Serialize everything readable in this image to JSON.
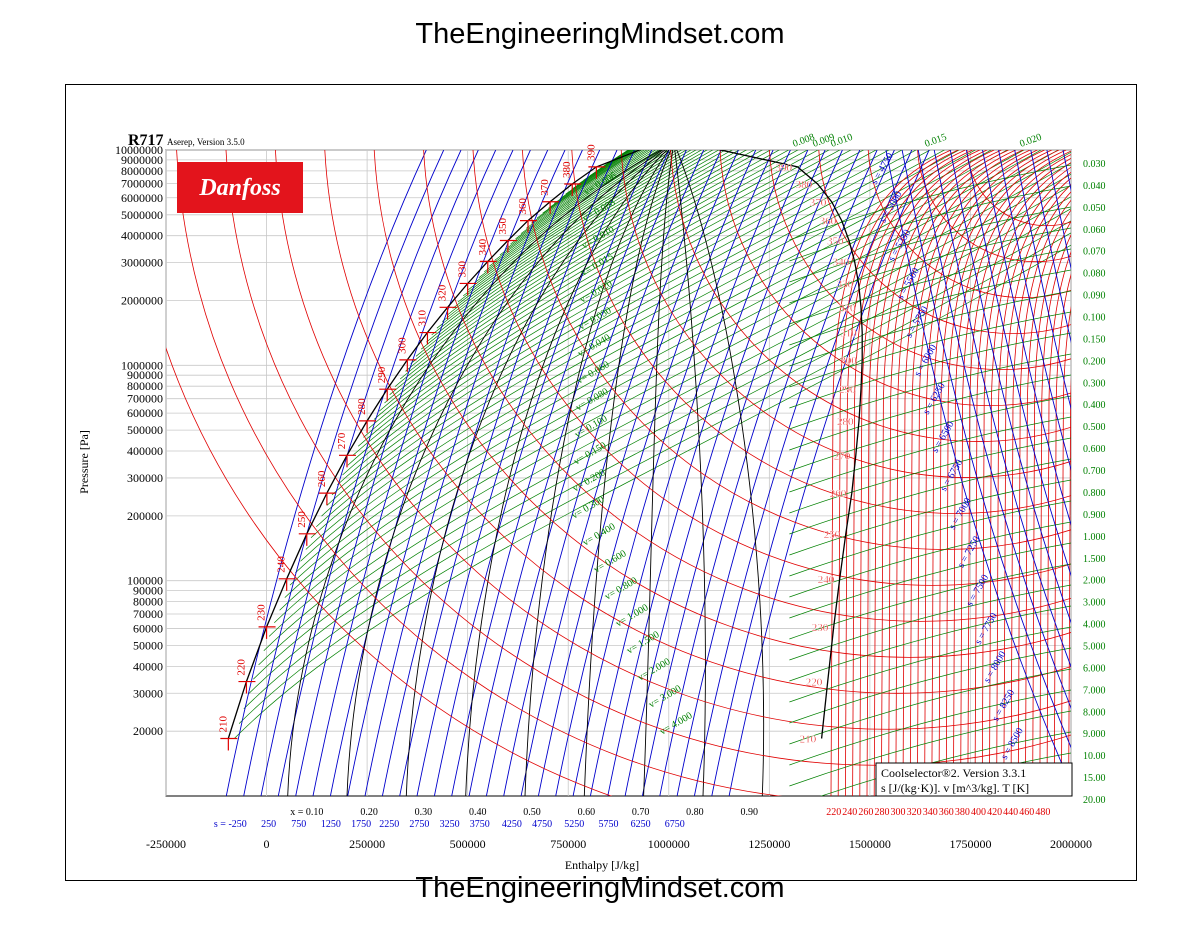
{
  "site": {
    "watermark": "TheEngineeringMindset.com"
  },
  "header": {
    "refrigerant": "R717",
    "version": "Aserep, Version 3.5.0",
    "brand": "Danfoss"
  },
  "footer": {
    "software": "Coolselector®2. Version 3.3.1",
    "units": "s [J/(kg·K)]. v [m^3/kg]. T [K]"
  },
  "colors": {
    "temperature": "#e00000",
    "specific_volume": "#008000",
    "entropy": "#0000cc",
    "quality": "#000000",
    "brand_red": "#e3141c"
  },
  "chart_data": {
    "type": "line",
    "title": "R717",
    "xlabel": "Enthalpy [J/kg]",
    "ylabel": "Pressure [Pa]",
    "xlim": [
      -250000,
      2000000
    ],
    "ylim": [
      10000,
      10000000
    ],
    "yscale": "log",
    "grid": true,
    "x_ticks": [
      {
        "v": -250000,
        "label": "-250000"
      },
      {
        "v": 0,
        "label": "0"
      },
      {
        "v": 250000,
        "label": "250000"
      },
      {
        "v": 500000,
        "label": "500000"
      },
      {
        "v": 750000,
        "label": "750000"
      },
      {
        "v": 1000000,
        "label": "1000000"
      },
      {
        "v": 1250000,
        "label": "1250000"
      },
      {
        "v": 1500000,
        "label": "1500000"
      },
      {
        "v": 1750000,
        "label": "1750000"
      },
      {
        "v": 2000000,
        "label": "2000000"
      }
    ],
    "y_ticks": [
      {
        "v": 20000,
        "label": "20000"
      },
      {
        "v": 30000,
        "label": "30000"
      },
      {
        "v": 40000,
        "label": "40000"
      },
      {
        "v": 50000,
        "label": "50000"
      },
      {
        "v": 60000,
        "label": "60000"
      },
      {
        "v": 70000,
        "label": "70000"
      },
      {
        "v": 80000,
        "label": "80000"
      },
      {
        "v": 90000,
        "label": "90000"
      },
      {
        "v": 100000,
        "label": "100000"
      },
      {
        "v": 200000,
        "label": "200000"
      },
      {
        "v": 300000,
        "label": "300000"
      },
      {
        "v": 400000,
        "label": "400000"
      },
      {
        "v": 500000,
        "label": "500000"
      },
      {
        "v": 600000,
        "label": "600000"
      },
      {
        "v": 700000,
        "label": "700000"
      },
      {
        "v": 800000,
        "label": "800000"
      },
      {
        "v": 900000,
        "label": "900000"
      },
      {
        "v": 1000000,
        "label": "1000000"
      },
      {
        "v": 2000000,
        "label": "2000000"
      },
      {
        "v": 3000000,
        "label": "3000000"
      },
      {
        "v": 4000000,
        "label": "4000000"
      },
      {
        "v": 5000000,
        "label": "5000000"
      },
      {
        "v": 6000000,
        "label": "6000000"
      },
      {
        "v": 7000000,
        "label": "7000000"
      },
      {
        "v": 8000000,
        "label": "8000000"
      },
      {
        "v": 9000000,
        "label": "9000000"
      },
      {
        "v": 10000000,
        "label": "10000000"
      }
    ],
    "entropy_axis": {
      "prefix": "s = ",
      "labels": [
        "-250",
        "250",
        "750",
        "1250",
        "1750",
        "2250",
        "2750",
        "3250",
        "3750",
        "4250",
        "4750",
        "5250",
        "5750",
        "6250",
        "6750"
      ],
      "h": [
        -90000,
        5000,
        80000,
        160000,
        235000,
        305000,
        380000,
        455000,
        530000,
        610000,
        685000,
        765000,
        850000,
        930000,
        1015000
      ]
    },
    "quality_axis": {
      "prefix": "x = ",
      "labels": [
        "0.10",
        "0.20",
        "0.30",
        "0.40",
        "0.50",
        "0.60",
        "0.70",
        "0.80",
        "0.90"
      ],
      "h": [
        100000,
        255000,
        390000,
        525000,
        660000,
        795000,
        930000,
        1065000,
        1200000
      ]
    },
    "temperature_axis": {
      "labels": [
        "220",
        "240",
        "260",
        "280",
        "300",
        "320",
        "340",
        "360",
        "380",
        "400",
        "420",
        "440",
        "460",
        "480"
      ]
    },
    "saturated_liquid": {
      "T": [
        210,
        220,
        230,
        240,
        250,
        260,
        270,
        280,
        290,
        300,
        310,
        320,
        330,
        340,
        350,
        360,
        370,
        380,
        390
      ],
      "h": [
        -95000,
        -50000,
        0,
        50000,
        100000,
        150000,
        200000,
        250000,
        300000,
        350000,
        400000,
        450000,
        500000,
        550000,
        600000,
        650000,
        705000,
        760000,
        820000
      ],
      "p": [
        18500,
        34000,
        61000,
        102000,
        165000,
        255000,
        382000,
        552000,
        775000,
        1060000,
        1420000,
        1860000,
        2400000,
        3040000,
        3800000,
        4700000,
        5750000,
        6950000,
        8350000
      ]
    },
    "saturated_vapor": {
      "T": [
        210,
        220,
        230,
        240,
        250,
        260,
        270,
        280,
        290,
        300,
        310,
        320,
        330,
        340,
        350,
        360,
        370,
        380,
        390
      ],
      "h": [
        1380000,
        1395000,
        1410000,
        1425000,
        1440000,
        1455000,
        1465000,
        1473000,
        1478000,
        1481000,
        1481000,
        1478000,
        1472000,
        1462000,
        1448000,
        1430000,
        1405000,
        1370000,
        1320000
      ],
      "p": [
        18500,
        34000,
        61000,
        102000,
        165000,
        255000,
        382000,
        552000,
        775000,
        1060000,
        1420000,
        1860000,
        2400000,
        3040000,
        3800000,
        4700000,
        5750000,
        6950000,
        8350000
      ]
    },
    "specific_volume_labels": [
      "0.006",
      "0.008",
      "0.010",
      "0.015",
      "0.020",
      "0.030",
      "0.040",
      "0.060",
      "0.080",
      "0.100",
      "0.150",
      "0.200",
      "0.300",
      "0.400",
      "0.600",
      "0.800",
      "1.000",
      "1.500",
      "2.000",
      "3.000",
      "4.000"
    ],
    "right_volume_labels": [
      "0.030",
      "0.040",
      "0.050",
      "0.060",
      "0.070",
      "0.080",
      "0.090",
      "0.100",
      "0.150",
      "0.200",
      "0.300",
      "0.400",
      "0.500",
      "0.600",
      "0.700",
      "0.800",
      "0.900",
      "1.000",
      "1.500",
      "2.000",
      "3.000",
      "4.000",
      "5.000",
      "6.000",
      "7.000",
      "8.000",
      "9.000",
      "10.00",
      "15.00",
      "20.00"
    ],
    "top_volume_labels": [
      "0.008",
      "0.009",
      "0.010",
      "0.015",
      "0.020"
    ],
    "vapor_entropy_labels": [
      "4750",
      "5000",
      "5250",
      "5500",
      "5750",
      "6000",
      "6250",
      "6500",
      "6750",
      "7000",
      "7250",
      "7500",
      "7750",
      "8000",
      "8250",
      "8500"
    ]
  }
}
